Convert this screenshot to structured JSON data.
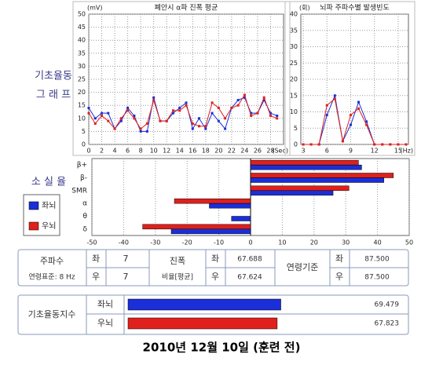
{
  "chart_data": [
    {
      "type": "line",
      "side_label": [
        "기초율동",
        "그 래 프"
      ],
      "title": "폐안시 α파 진폭 평균",
      "y_unit": "(mV)",
      "x_unit": "(Sec)",
      "x": [
        0,
        1,
        2,
        3,
        4,
        5,
        6,
        7,
        8,
        9,
        10,
        11,
        12,
        13,
        14,
        15,
        16,
        17,
        18,
        19,
        20,
        21,
        22,
        23,
        24,
        25,
        26,
        27,
        28,
        29
      ],
      "series": [
        {
          "color": "#1a2fd8",
          "values": [
            14,
            10,
            12,
            12,
            6,
            9,
            14,
            11,
            5,
            5,
            18,
            9,
            9,
            12,
            14,
            16,
            6,
            10,
            6,
            12,
            9,
            6,
            14,
            17,
            18,
            12,
            12,
            17,
            12,
            11
          ]
        },
        {
          "color": "#e0201c",
          "values": [
            12,
            8,
            11,
            9,
            6,
            10,
            13,
            10,
            6,
            8,
            17,
            9,
            9,
            13,
            13,
            15,
            8,
            7,
            7,
            16,
            14,
            10,
            14,
            15,
            19,
            11,
            12,
            18,
            11,
            10
          ]
        }
      ],
      "xlim": [
        0,
        30
      ],
      "ylim": [
        0,
        50
      ],
      "xticks": [
        0,
        2,
        4,
        6,
        8,
        10,
        12,
        14,
        16,
        18,
        20,
        22,
        24,
        26,
        28
      ],
      "yticks": [
        0,
        5,
        10,
        15,
        20,
        25,
        30,
        35,
        40,
        45,
        50
      ],
      "grid": true
    },
    {
      "type": "line",
      "title": "뇌파 주파수별 발생빈도",
      "y_unit": "(회)",
      "x_unit": "(Hz)",
      "x": [
        3,
        4,
        5,
        6,
        7,
        8,
        9,
        10,
        11,
        12,
        13,
        14,
        15,
        16
      ],
      "series": [
        {
          "color": "#1a2fd8",
          "values": [
            0,
            0,
            0,
            9,
            15,
            1,
            6,
            13,
            7,
            0,
            0,
            0,
            0,
            0
          ]
        },
        {
          "color": "#e0201c",
          "values": [
            0,
            0,
            0,
            12,
            14,
            1,
            9,
            11,
            6,
            0,
            0,
            0,
            0,
            0
          ]
        }
      ],
      "xlim": [
        2.7,
        16.3
      ],
      "ylim": [
        0,
        40
      ],
      "xticks": [
        3,
        6,
        9,
        12,
        15
      ],
      "yticks": [
        0,
        5,
        10,
        15,
        20,
        25,
        30,
        35,
        40
      ],
      "grid": true
    },
    {
      "type": "hbar",
      "side_label": "소 실 율",
      "categories": [
        "β+",
        "β-",
        "SMR",
        "α",
        "θ",
        "δ"
      ],
      "series": [
        {
          "name": "좌뇌",
          "color": "#1a2fd8",
          "values": [
            35,
            42,
            26,
            -13,
            -6,
            -25
          ]
        },
        {
          "name": "우뇌",
          "color": "#e0201c",
          "values": [
            34,
            45,
            31,
            -24,
            0,
            -34
          ]
        }
      ],
      "xlim": [
        -50,
        50
      ],
      "xticks": [
        -50,
        -40,
        -30,
        -20,
        -10,
        0,
        10,
        20,
        30,
        40,
        50
      ],
      "grid": true,
      "legend": "left"
    },
    {
      "type": "index",
      "title": "기초율동지수",
      "categories": [
        "좌뇌",
        "우뇌"
      ],
      "colors": [
        "#1a2fd8",
        "#e0201c"
      ],
      "values": [
        69.479,
        67.823
      ],
      "xlim": [
        0,
        100
      ]
    }
  ],
  "table": {
    "frequency": {
      "label": "주파수",
      "standard": "연령표준: 8 Hz",
      "left_label": "좌",
      "left": "7",
      "right_label": "우",
      "right": "7"
    },
    "amplitude": {
      "label": "진폭",
      "sub": "비율[평균]",
      "left_label": "좌",
      "left": "67.688",
      "right_label": "우",
      "right": "67.624"
    },
    "age": {
      "label": "연령기준",
      "left_label": "좌",
      "left": "87.500",
      "right_label": "우",
      "right": "87.500"
    }
  },
  "caption": "2010년 12월 10일 (훈련 전)"
}
